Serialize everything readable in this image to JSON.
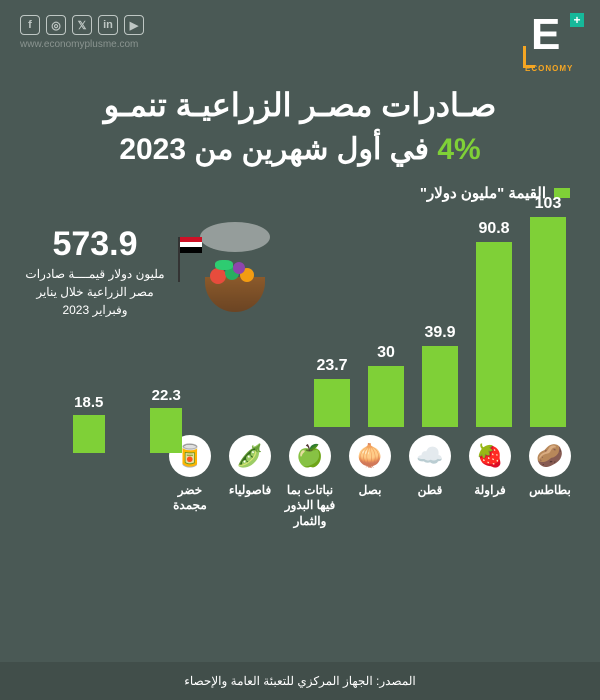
{
  "logo": {
    "letter": "E",
    "plus": "+",
    "subtitle": "ECONOMY"
  },
  "website": "www.economyplusme.com",
  "title": {
    "line1": "صـادرات مصـر الزراعيـة تنمـو",
    "pct": "4%",
    "line2_rest": " في أول شهرين من 2023"
  },
  "legend": {
    "label": "القيمة \"مليون دولار\""
  },
  "summary": {
    "value": "573.9",
    "text": "مليون دولار قيمــــة صادرات مصر الزراعية خلال يناير وفبراير 2023"
  },
  "chart": {
    "type": "bar",
    "bar_color": "#7fd037",
    "max": 103,
    "bars": [
      {
        "label": "بطاطس",
        "value": 103,
        "icon": "🥔"
      },
      {
        "label": "فراولة",
        "value": 90.8,
        "icon": "🍓"
      },
      {
        "label": "قطن",
        "value": 39.9,
        "icon": "☁️"
      },
      {
        "label": "بصل",
        "value": 30,
        "icon": "🧅"
      },
      {
        "label": "نباتات بما فيها البذور والثمار",
        "value": 23.7,
        "icon": "🍏"
      },
      {
        "label": "فاصولياء",
        "value": 22.3,
        "icon": "🫛"
      },
      {
        "label": "خضر مجمدة",
        "value": 18.5,
        "icon": "🥫"
      }
    ]
  },
  "source": "المصدر: الجهاز المركزي للتعبئة العامة والإحصاء"
}
